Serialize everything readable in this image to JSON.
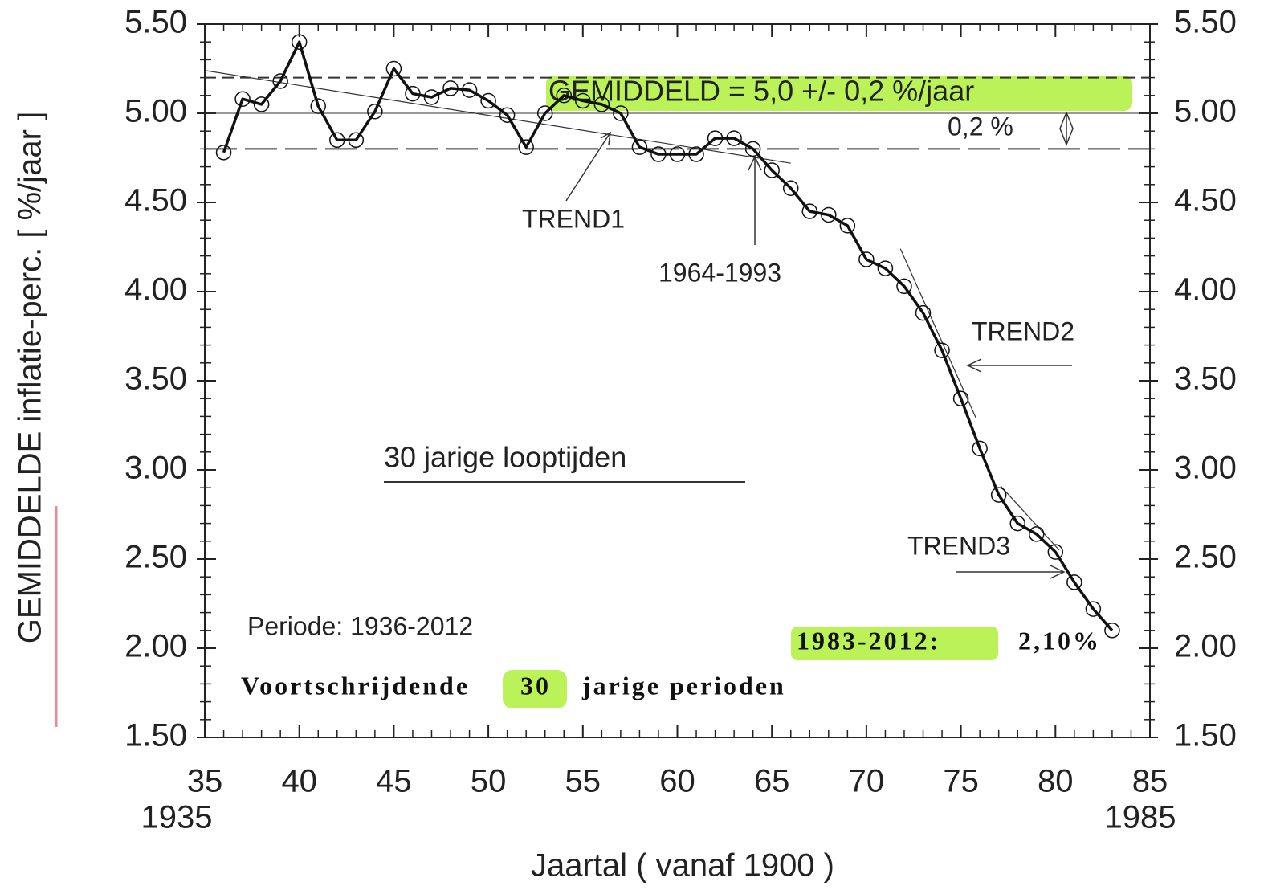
{
  "chart_data": {
    "type": "line",
    "y_label": "GEMIDDELDE inflatie-perc. [ %/jaar ]",
    "x_label": "Jaartal ( vanaf 1900 )",
    "x_end_labels": [
      "1935",
      "1985"
    ],
    "x": [
      36,
      37,
      38,
      39,
      40,
      41,
      42,
      43,
      44,
      45,
      46,
      47,
      48,
      49,
      50,
      51,
      52,
      53,
      54,
      55,
      56,
      57,
      58,
      59,
      60,
      61,
      62,
      63,
      64,
      65,
      66,
      67,
      68,
      69,
      70,
      71,
      72,
      73,
      74,
      75,
      76,
      77,
      78,
      79,
      80,
      81,
      82,
      83
    ],
    "series": [
      {
        "color": "#111111",
        "values": [
          4.78,
          5.08,
          5.05,
          5.18,
          5.4,
          5.04,
          4.85,
          4.85,
          5.01,
          5.25,
          5.11,
          5.09,
          5.14,
          5.13,
          5.07,
          4.99,
          4.81,
          5.0,
          5.1,
          5.07,
          5.05,
          5.0,
          4.81,
          4.77,
          4.77,
          4.77,
          4.86,
          4.86,
          4.8,
          4.68,
          4.58,
          4.45,
          4.43,
          4.37,
          4.18,
          4.13,
          4.03,
          3.88,
          3.67,
          3.4,
          3.12,
          2.86,
          2.7,
          2.64,
          2.54,
          2.37,
          2.22,
          2.1
        ]
      }
    ],
    "xlim": [
      35,
      85
    ],
    "xticks": [
      35,
      40,
      45,
      50,
      55,
      60,
      65,
      70,
      75,
      80,
      85
    ],
    "ylim": [
      1.5,
      5.5
    ],
    "yticks": [
      {
        "value": 1.5,
        "label": "1.50"
      },
      {
        "value": 2,
        "label": "2.00"
      },
      {
        "value": 2.5,
        "label": "2.50"
      },
      {
        "value": 3,
        "label": "3.00"
      },
      {
        "value": 3.5,
        "label": "3.50"
      },
      {
        "value": 4,
        "label": "4.00"
      },
      {
        "value": 4.5,
        "label": "4.50"
      },
      {
        "value": 5,
        "label": "5.00"
      },
      {
        "value": 5.5,
        "label": "5.50"
      }
    ],
    "y2lim": [
      1.5,
      5.5
    ],
    "y2ticks": [
      {
        "value": 1.5,
        "label": "1.50"
      },
      {
        "value": 2,
        "label": "2.00"
      },
      {
        "value": 2.5,
        "label": "2.50"
      },
      {
        "value": 3,
        "label": "3.00"
      },
      {
        "value": 3.5,
        "label": "3.50"
      },
      {
        "value": 4,
        "label": "4.00"
      },
      {
        "value": 4.5,
        "label": "4.50"
      },
      {
        "value": 5,
        "label": "5.00"
      },
      {
        "value": 5.5,
        "label": "5.50"
      }
    ],
    "hlines": [
      {
        "value": 5.2,
        "style": "dashed"
      },
      {
        "value": 5.0,
        "style": "solid"
      },
      {
        "value": 4.8,
        "style": "longdash"
      }
    ],
    "trend_lines": [
      {
        "x": [
          35,
          66
        ],
        "y": [
          5.24,
          4.72
        ]
      },
      {
        "x": [
          71.8,
          75.8
        ],
        "y": [
          4.24,
          3.29
        ]
      },
      {
        "x": [
          77.1,
          80.2
        ],
        "y": [
          2.91,
          2.55
        ]
      }
    ],
    "annotations": {
      "mean": "GEMIDDELD = 5,0 +/- 0,2 %/jaar",
      "band": "0,2 %",
      "trend1": "TREND1",
      "period1": "1964-1993",
      "trend2": "TREND2",
      "trend3": "TREND3",
      "term": "30 jarige looptijden",
      "period": "Periode: 1936-2012",
      "last_period": "1983-2012:",
      "last_value": "2,10%",
      "footer_a": "Voortschrijdende",
      "footer_b": "30",
      "footer_c": "jarige perioden"
    }
  }
}
